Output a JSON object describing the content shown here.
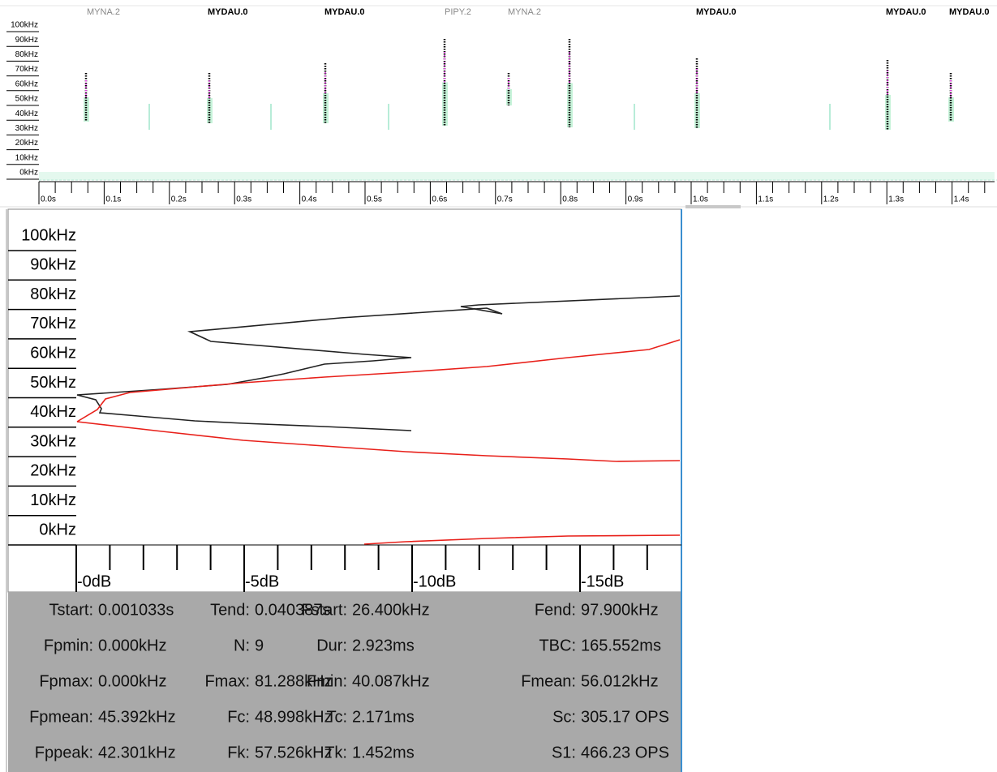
{
  "top_panel": {
    "species_labels": [
      "MYNA.2",
      "MYDAU.0",
      "MYDAU.0",
      "PIPY.2",
      "MYNA.2",
      "MYDAU.0",
      "MYDAU.0",
      "MYDAU.0"
    ],
    "frequency_labels": [
      "100kHz",
      "90kHz",
      "80kHz",
      "70kHz",
      "60kHz",
      "50kHz",
      "40kHz",
      "30kHz",
      "20kHz",
      "10kHz",
      "0kHz"
    ],
    "time_labels": [
      "0.0s",
      "0.1s",
      "0.2s",
      "0.3s",
      "0.4s",
      "0.5s",
      "0.6s",
      "0.7s",
      "0.8s",
      "0.9s",
      "1.0s",
      "1.1s",
      "1.2s",
      "1.3s",
      "1.4s"
    ]
  },
  "detail_panel": {
    "frequency_labels": [
      "100kHz",
      "90kHz",
      "80kHz",
      "70kHz",
      "60kHz",
      "50kHz",
      "40kHz",
      "30kHz",
      "20kHz",
      "10kHz",
      "0kHz"
    ],
    "attenuation_labels": [
      "-0dB",
      "-5dB",
      "-10dB",
      "-15dB"
    ]
  },
  "measurements": [
    {
      "label": "Tstart:",
      "value": "0.001033s"
    },
    {
      "label": "Tend:",
      "value": "0.040387s"
    },
    {
      "label": "Fstart:",
      "value": "26.400kHz"
    },
    {
      "label": "Fend:",
      "value": "97.900kHz"
    },
    {
      "label": "Fpmin:",
      "value": "0.000kHz"
    },
    {
      "label": "N:",
      "value": "9"
    },
    {
      "label": "Dur:",
      "value": "2.923ms"
    },
    {
      "label": "TBC:",
      "value": "165.552ms"
    },
    {
      "label": "Fpmax:",
      "value": "0.000kHz"
    },
    {
      "label": "Fmax:",
      "value": "81.288kHz"
    },
    {
      "label": "Fmin:",
      "value": "40.087kHz"
    },
    {
      "label": "Fmean:",
      "value": "56.012kHz"
    },
    {
      "label": "Fpmean:",
      "value": "45.392kHz"
    },
    {
      "label": "Fc:",
      "value": "48.998kHz"
    },
    {
      "label": "Tc:",
      "value": "2.171ms"
    },
    {
      "label": "Sc:",
      "value": "305.17 OPS"
    },
    {
      "label": "Fppeak:",
      "value": "42.301kHz"
    },
    {
      "label": "Fk:",
      "value": "57.526kHz"
    },
    {
      "label": "Tk:",
      "value": "1.452ms"
    },
    {
      "label": "S1:",
      "value": "466.23 OPS"
    }
  ]
}
